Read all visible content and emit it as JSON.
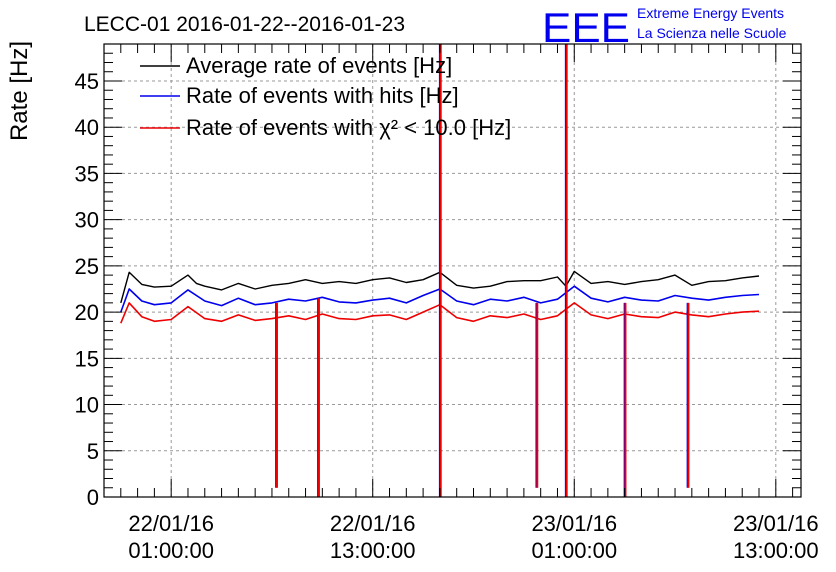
{
  "chart_data": {
    "type": "line",
    "title": "LECC-01 2016-01-22--2016-01-23",
    "ylabel": "Rate [Hz]",
    "xlabel": "",
    "ylim": [
      0,
      49
    ],
    "y_ticks": [
      "0",
      "5",
      "10",
      "15",
      "20",
      "25",
      "30",
      "35",
      "40",
      "45"
    ],
    "grid": true,
    "legend_position": "top-left",
    "x_range": [
      "2016-01-21 21:00",
      "2016-01-23 14:30"
    ],
    "x_ticks": [
      {
        "date": "22/01/16",
        "time": "01:00:00",
        "x": "2016-01-22 01:00"
      },
      {
        "date": "22/01/16",
        "time": "13:00:00",
        "x": "2016-01-22 13:00"
      },
      {
        "date": "23/01/16",
        "time": "01:00:00",
        "x": "2016-01-23 01:00"
      },
      {
        "date": "23/01/16",
        "time": "13:00:00",
        "x": "2016-01-23 13:00"
      }
    ],
    "series": [
      {
        "name": "Average rate of events [Hz]",
        "color": "#000000",
        "x": [
          "2016-01-21 22:00",
          "2016-01-21 22:30",
          "2016-01-21 23:15",
          "2016-01-22 00:00",
          "2016-01-22 01:00",
          "2016-01-22 02:00",
          "2016-01-22 02:30",
          "2016-01-22 03:00",
          "2016-01-22 04:00",
          "2016-01-22 05:00",
          "2016-01-22 06:00",
          "2016-01-22 07:00",
          "2016-01-22 08:00",
          "2016-01-22 09:00",
          "2016-01-22 10:00",
          "2016-01-22 11:00",
          "2016-01-22 12:00",
          "2016-01-22 13:00",
          "2016-01-22 14:00",
          "2016-01-22 15:00",
          "2016-01-22 16:00",
          "2016-01-22 17:00",
          "2016-01-22 18:00",
          "2016-01-22 19:00",
          "2016-01-22 20:00",
          "2016-01-22 21:00",
          "2016-01-22 22:00",
          "2016-01-22 23:00",
          "2016-01-23 00:00",
          "2016-01-23 00:30",
          "2016-01-23 01:00",
          "2016-01-23 02:00",
          "2016-01-23 03:00",
          "2016-01-23 04:00",
          "2016-01-23 05:00",
          "2016-01-23 06:00",
          "2016-01-23 07:00",
          "2016-01-23 08:00",
          "2016-01-23 09:00",
          "2016-01-23 10:00",
          "2016-01-23 11:00",
          "2016-01-23 12:00"
        ],
        "y": [
          21.0,
          24.3,
          23.0,
          22.7,
          22.8,
          24.0,
          23.1,
          22.8,
          22.4,
          23.1,
          22.5,
          22.9,
          23.1,
          23.5,
          23.1,
          23.3,
          23.1,
          23.5,
          23.7,
          23.2,
          23.5,
          24.3,
          22.9,
          22.6,
          22.8,
          23.3,
          23.4,
          23.4,
          23.8,
          22.8,
          24.4,
          23.1,
          23.3,
          23.0,
          23.3,
          23.5,
          24.0,
          22.9,
          23.3,
          23.4,
          23.7,
          23.9
        ]
      },
      {
        "name": "Rate of events with hits [Hz]",
        "color": "#0000ee",
        "x": [
          "2016-01-21 22:00",
          "2016-01-21 22:30",
          "2016-01-21 23:15",
          "2016-01-22 00:00",
          "2016-01-22 01:00",
          "2016-01-22 02:00",
          "2016-01-22 03:00",
          "2016-01-22 04:00",
          "2016-01-22 05:00",
          "2016-01-22 06:00",
          "2016-01-22 07:00",
          "2016-01-22 08:00",
          "2016-01-22 09:00",
          "2016-01-22 10:00",
          "2016-01-22 11:00",
          "2016-01-22 12:00",
          "2016-01-22 13:00",
          "2016-01-22 14:00",
          "2016-01-22 15:00",
          "2016-01-22 16:00",
          "2016-01-22 17:00",
          "2016-01-22 18:00",
          "2016-01-22 19:00",
          "2016-01-22 20:00",
          "2016-01-22 21:00",
          "2016-01-22 22:00",
          "2016-01-22 23:00",
          "2016-01-23 00:00",
          "2016-01-23 01:00",
          "2016-01-23 02:00",
          "2016-01-23 03:00",
          "2016-01-23 04:00",
          "2016-01-23 05:00",
          "2016-01-23 06:00",
          "2016-01-23 07:00",
          "2016-01-23 08:00",
          "2016-01-23 09:00",
          "2016-01-23 10:00",
          "2016-01-23 11:00",
          "2016-01-23 12:00"
        ],
        "y": [
          20.0,
          22.5,
          21.2,
          20.8,
          21.0,
          22.4,
          21.2,
          20.7,
          21.5,
          20.8,
          21.0,
          21.4,
          21.2,
          21.6,
          21.1,
          21.0,
          21.3,
          21.5,
          21.0,
          21.8,
          22.5,
          21.2,
          20.8,
          21.4,
          21.2,
          21.6,
          21.0,
          21.4,
          22.8,
          21.5,
          21.1,
          21.6,
          21.3,
          21.2,
          21.8,
          21.5,
          21.3,
          21.6,
          21.8,
          21.9
        ]
      },
      {
        "name": "Rate of events with χ² < 10.0 [Hz]",
        "color": "#ee0000",
        "x": [
          "2016-01-21 22:00",
          "2016-01-21 22:30",
          "2016-01-21 23:15",
          "2016-01-22 00:00",
          "2016-01-22 01:00",
          "2016-01-22 02:00",
          "2016-01-22 03:00",
          "2016-01-22 04:00",
          "2016-01-22 05:00",
          "2016-01-22 06:00",
          "2016-01-22 07:00",
          "2016-01-22 08:00",
          "2016-01-22 09:00",
          "2016-01-22 10:00",
          "2016-01-22 11:00",
          "2016-01-22 12:00",
          "2016-01-22 13:00",
          "2016-01-22 14:00",
          "2016-01-22 15:00",
          "2016-01-22 16:00",
          "2016-01-22 17:00",
          "2016-01-22 18:00",
          "2016-01-22 19:00",
          "2016-01-22 20:00",
          "2016-01-22 21:00",
          "2016-01-22 22:00",
          "2016-01-22 23:00",
          "2016-01-23 00:00",
          "2016-01-23 01:00",
          "2016-01-23 02:00",
          "2016-01-23 03:00",
          "2016-01-23 04:00",
          "2016-01-23 05:00",
          "2016-01-23 06:00",
          "2016-01-23 07:00",
          "2016-01-23 08:00",
          "2016-01-23 09:00",
          "2016-01-23 10:00",
          "2016-01-23 11:00",
          "2016-01-23 12:00"
        ],
        "y": [
          18.8,
          21.0,
          19.5,
          19.0,
          19.2,
          20.6,
          19.3,
          19.0,
          19.7,
          19.1,
          19.3,
          19.6,
          19.2,
          19.8,
          19.3,
          19.2,
          19.6,
          19.7,
          19.2,
          20.0,
          20.8,
          19.4,
          19.0,
          19.6,
          19.4,
          19.8,
          19.2,
          19.6,
          21.0,
          19.7,
          19.3,
          19.8,
          19.5,
          19.4,
          20.0,
          19.7,
          19.5,
          19.8,
          20.0,
          20.1
        ]
      }
    ],
    "spikes": [
      {
        "x": "2016-01-22 07:15",
        "y_min": 1.0,
        "y_max": 21.0
      },
      {
        "x": "2016-01-22 09:45",
        "y_min": 0.0,
        "y_max": 21.5
      },
      {
        "x": "2016-01-22 17:00",
        "y_min": 0.0,
        "y_max": 49.0
      },
      {
        "x": "2016-01-22 22:45",
        "y_min": 1.0,
        "y_max": 21.0
      },
      {
        "x": "2016-01-23 00:30",
        "y_min": 0.0,
        "y_max": 49.0
      },
      {
        "x": "2016-01-23 04:00",
        "y_min": 0.0,
        "y_max": 21.0
      },
      {
        "x": "2016-01-23 07:45",
        "y_min": 1.0,
        "y_max": 21.0
      }
    ]
  },
  "logo": {
    "mark": "EEE",
    "line1": "Extreme Energy Events",
    "line2": "La Scienza nelle Scuole",
    "color": "#0000ee"
  }
}
